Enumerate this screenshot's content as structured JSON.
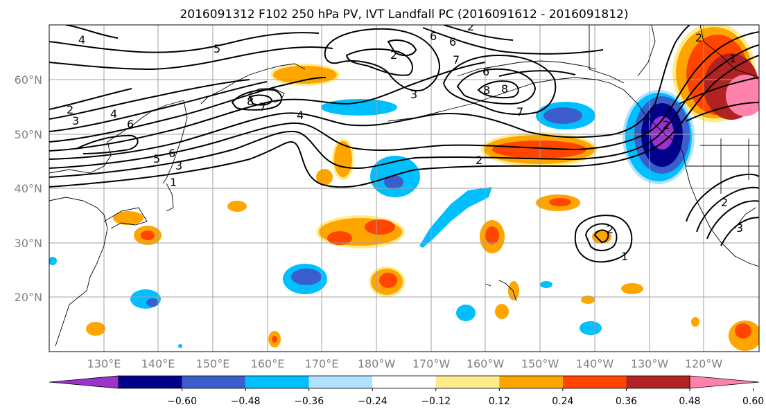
{
  "title": "2016091312 F102 250 hPa PV, IVT Landfall PC (2016091612 - 2016091812)",
  "lat_labels": [
    "60°N",
    "50°N",
    "40°N",
    "30°N",
    "20°N"
  ],
  "lon_labels": [
    "130°E",
    "140°E",
    "150°E",
    "160°E",
    "170°E",
    "180°W",
    "170°W",
    "160°W",
    "150°W",
    "140°W",
    "130°W",
    "120°W"
  ],
  "colorbar": {
    "ticks": [
      "−0.60",
      "−0.48",
      "−0.36",
      "−0.24",
      "−0.12",
      "0.12",
      "0.24",
      "0.36",
      "0.48",
      "0.60"
    ],
    "colors": [
      "#9a32cd",
      "#00008b",
      "#3a5fcd",
      "#00bfff",
      "#b0e2ff",
      "#ffffff",
      "#ffec8b",
      "#ffa500",
      "#ff4500",
      "#b22222",
      "#ff82ab"
    ]
  },
  "contour_labels": [
    "4",
    "5",
    "6",
    "2",
    "6",
    "7",
    "2",
    "3",
    "6",
    "8",
    "2",
    "6",
    "4",
    "3",
    "8",
    "7",
    "4",
    "1",
    "6",
    "7",
    "8",
    "2",
    "5",
    "3",
    "1",
    "2",
    "2",
    "3",
    "2",
    "2",
    "1"
  ]
}
